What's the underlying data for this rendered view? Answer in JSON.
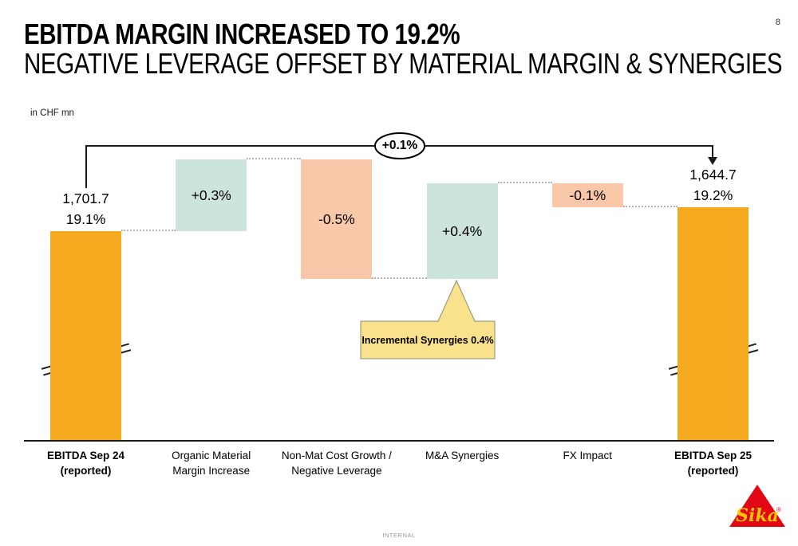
{
  "page_number": "8",
  "header": {
    "title": "EBITDA MARGIN INCREASED TO 19.2%",
    "subtitle": "NEGATIVE LEVERAGE OFFSET BY MATERIAL MARGIN & SYNERGIES"
  },
  "footer": {
    "classification": "INTERNAL"
  },
  "logo": {
    "brand": "Sika",
    "registered": "®"
  },
  "colors": {
    "total_bar": "#F5A91F",
    "increase_bar": "#CDE3DE",
    "decrease_bar": "#F8C8A8",
    "callout_fill": "#F9E28B",
    "callout_border": "#8a8a78",
    "line_black": "#1a1a1a",
    "connector_gray": "#b3b3b3",
    "logo_red": "#E30613",
    "logo_yellow": "#FFC600"
  },
  "chart_data": {
    "type": "waterfall",
    "unit_label": "in CHF mn",
    "bridge_total_label": "+0.1%",
    "margin_axis_note": "bars show EBITDA margin % levels; end bars broken (axis break) down to 0",
    "start_margin_pct": 19.1,
    "end_margin_pct": 19.2,
    "columns": [
      {
        "id": "ebitda-sep24",
        "kind": "total",
        "bold": true,
        "broken": true,
        "margin_pct": 19.1,
        "value_lines": [
          "1,701.7",
          "19.1%"
        ],
        "label_lines": [
          "EBITDA Sep 24",
          "(reported)"
        ]
      },
      {
        "id": "organic-material-margin-increase",
        "kind": "increase",
        "delta_pct": 0.3,
        "bar_label": "+0.3%",
        "label_lines": [
          "Organic Material",
          "Margin Increase"
        ]
      },
      {
        "id": "non-mat-cost-growth-negative-leverage",
        "kind": "decrease",
        "delta_pct": -0.5,
        "bar_label": "-0.5%",
        "label_lines": [
          "Non-Mat Cost Growth /",
          "Negative Leverage"
        ]
      },
      {
        "id": "ma-synergies",
        "kind": "increase",
        "delta_pct": 0.4,
        "bar_label": "+0.4%",
        "label_lines": [
          "M&A Synergies"
        ]
      },
      {
        "id": "fx-impact",
        "kind": "decrease",
        "delta_pct": -0.1,
        "bar_label": "-0.1%",
        "label_lines": [
          "FX Impact"
        ]
      },
      {
        "id": "ebitda-sep25",
        "kind": "total",
        "bold": true,
        "broken": true,
        "margin_pct": 19.2,
        "value_lines": [
          "1,644.7",
          "19.2%"
        ],
        "label_lines": [
          "EBITDA Sep 25",
          "(reported)"
        ]
      }
    ],
    "callout": {
      "text": "Incremental Synergies 0.4%",
      "target": "M&A Synergies"
    }
  }
}
